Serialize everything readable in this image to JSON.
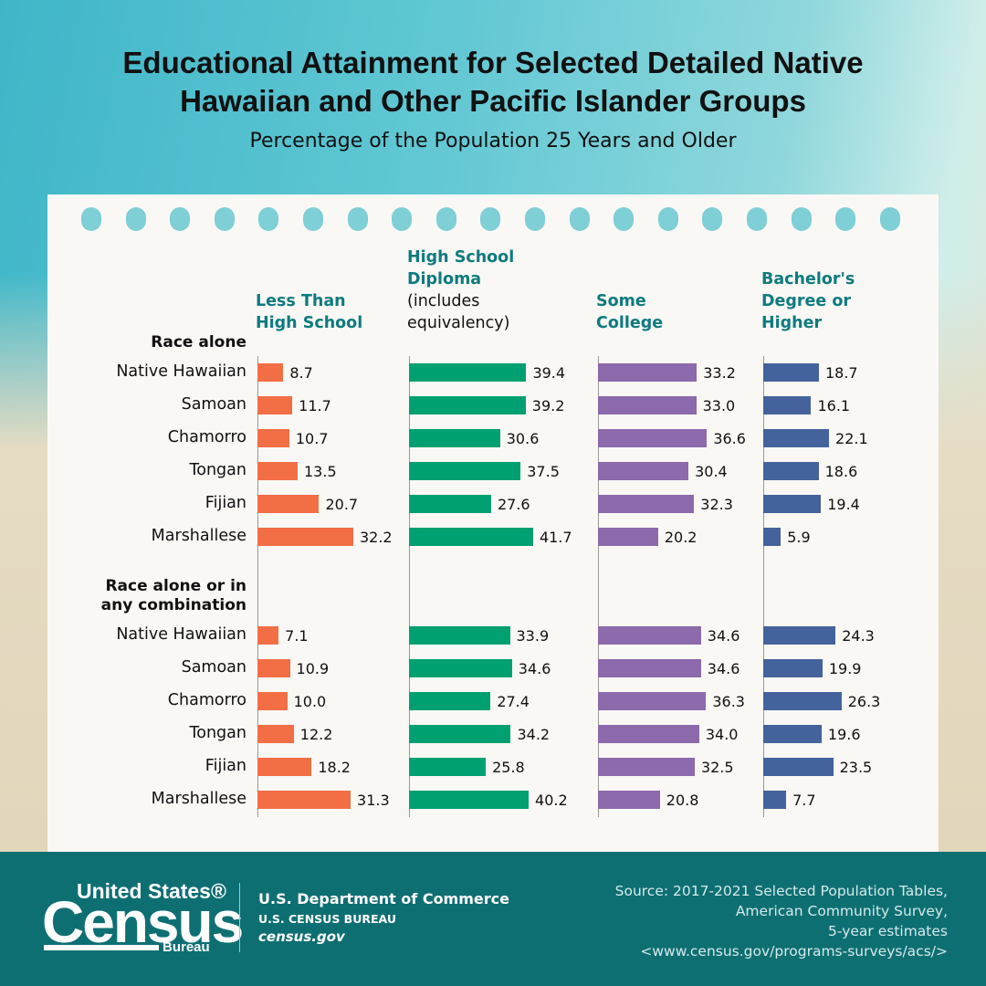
{
  "chart_data": {
    "type": "bar",
    "orientation": "horizontal",
    "title": "Educational Attainment for Selected Detailed Native Hawaiian and Other Pacific Islander Groups",
    "subtitle": "Percentage of the Population 25 Years and Older",
    "groups": [
      "Race alone",
      "Race alone or in any combination"
    ],
    "categories": [
      "Native Hawaiian",
      "Samoan",
      "Chamorro",
      "Tongan",
      "Fijian",
      "Marshallese",
      "Native Hawaiian",
      "Samoan",
      "Chamorro",
      "Tongan",
      "Fijian",
      "Marshallese"
    ],
    "series": [
      {
        "name": "Less Than High School",
        "color": "#f26e45",
        "values": [
          8.7,
          11.7,
          10.7,
          13.5,
          20.7,
          32.2,
          7.1,
          10.9,
          10,
          12.2,
          18.2,
          31.3
        ],
        "value_labels": [
          "8.7",
          "11.7",
          "10.7",
          "13.5",
          "20.7",
          "32.2",
          "7.1",
          "10.9",
          "10.0",
          "12.2",
          "18.2",
          "31.3"
        ]
      },
      {
        "name": "High School Diploma",
        "note": "(includes equivalency)",
        "color": "#00a070",
        "values": [
          39.4,
          39.2,
          30.6,
          37.5,
          27.6,
          41.7,
          33.9,
          34.6,
          27.4,
          34.2,
          25.8,
          40.2
        ],
        "value_labels": [
          "39.4",
          "39.2",
          "30.6",
          "37.5",
          "27.6",
          "41.7",
          "33.9",
          "34.6",
          "27.4",
          "34.2",
          "25.8",
          "40.2"
        ]
      },
      {
        "name": "Some College",
        "color": "#8c6aab",
        "values": [
          33.2,
          33,
          36.6,
          30.4,
          32.3,
          20.2,
          34.6,
          34.6,
          36.3,
          34,
          32.5,
          20.8
        ],
        "value_labels": [
          "33.2",
          "33.0",
          "36.6",
          "30.4",
          "32.3",
          "20.2",
          "34.6",
          "34.6",
          "36.3",
          "34.0",
          "32.5",
          "20.8"
        ]
      },
      {
        "name": "Bachelor's Degree or Higher",
        "color": "#44639c",
        "values": [
          18.7,
          16.1,
          22.1,
          18.6,
          19.4,
          5.9,
          24.3,
          19.9,
          26.3,
          19.6,
          23.5,
          7.7
        ],
        "value_labels": [
          "18.7",
          "16.1",
          "22.1",
          "18.6",
          "19.4",
          "5.9",
          "24.3",
          "19.9",
          "26.3",
          "19.6",
          "23.5",
          "7.7"
        ]
      }
    ]
  },
  "footer": {
    "logo": {
      "line1": "United States®",
      "line2": "Census",
      "line3": "Bureau"
    },
    "department": "U.S. Department of Commerce",
    "bureau": "U.S. CENSUS BUREAU",
    "website": "census.gov",
    "source": [
      "Source: 2017-2021 Selected Population Tables,",
      "American Community Survey,",
      "5-year estimates",
      "<www.census.gov/programs-surveys/acs/>"
    ]
  }
}
